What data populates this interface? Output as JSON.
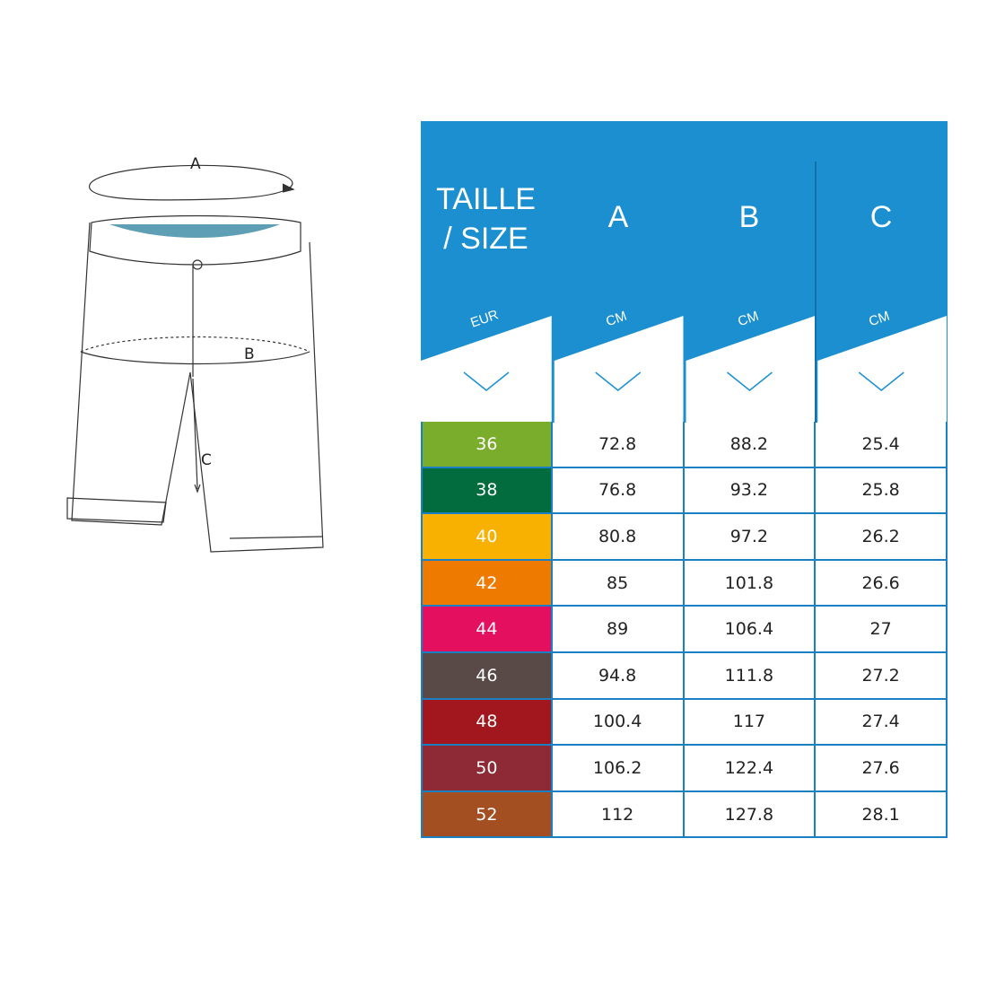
{
  "diagram": {
    "labels": [
      "A",
      "B",
      "C"
    ]
  },
  "table": {
    "accent": "#1b8fd0",
    "headers": [
      {
        "title": "TAILLE / SIZE",
        "unit": "EUR"
      },
      {
        "title": "A",
        "unit": "CM"
      },
      {
        "title": "B",
        "unit": "CM"
      },
      {
        "title": "C",
        "unit": "CM"
      }
    ],
    "rows": [
      {
        "size": "36",
        "a": "72.8",
        "b": "88.2",
        "c": "25.4",
        "color": "#7aad2b"
      },
      {
        "size": "38",
        "a": "76.8",
        "b": "93.2",
        "c": "25.8",
        "color": "#026c3f"
      },
      {
        "size": "40",
        "a": "80.8",
        "b": "97.2",
        "c": "26.2",
        "color": "#f8b100"
      },
      {
        "size": "42",
        "a": "85",
        "b": "101.8",
        "c": "26.6",
        "color": "#ef7a00"
      },
      {
        "size": "44",
        "a": "89",
        "b": "106.4",
        "c": "27",
        "color": "#e4105f"
      },
      {
        "size": "46",
        "a": "94.8",
        "b": "111.8",
        "c": "27.2",
        "color": "#5a4a47"
      },
      {
        "size": "48",
        "a": "100.4",
        "b": "117",
        "c": "27.4",
        "color": "#a1171d"
      },
      {
        "size": "50",
        "a": "106.2",
        "b": "122.4",
        "c": "27.6",
        "color": "#8e2a35"
      },
      {
        "size": "52",
        "a": "112",
        "b": "127.8",
        "c": "28.1",
        "color": "#a44f22"
      }
    ]
  }
}
